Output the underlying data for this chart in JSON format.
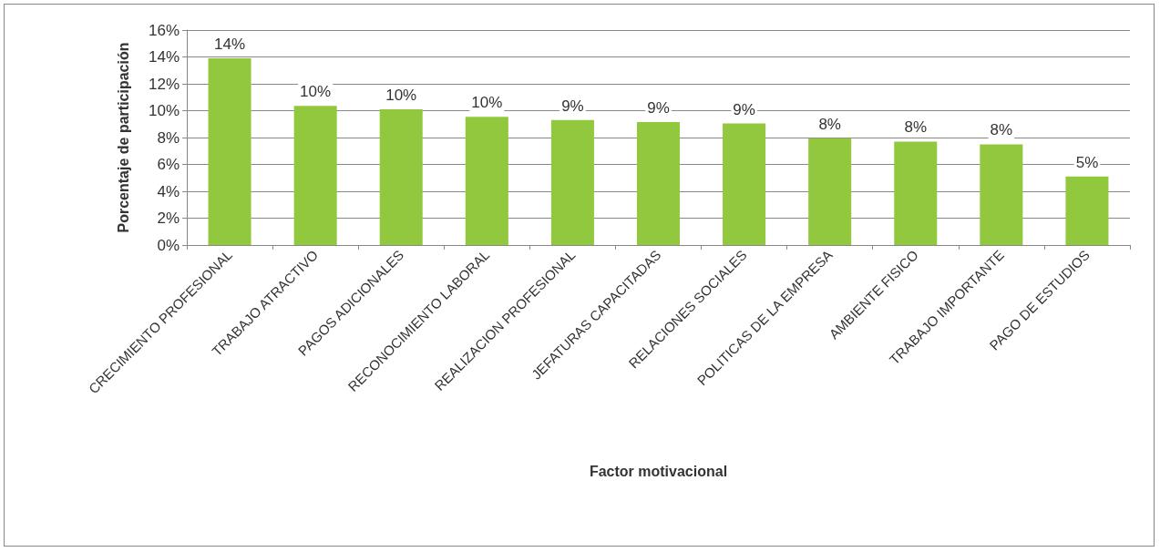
{
  "chart_data": {
    "type": "bar",
    "xlabel": "Factor motivacional",
    "ylabel": "Porcentaje de participación",
    "categories": [
      "CRECIMIENTO PROFESIONAL",
      "TRABAJO ATRACTIVO",
      "PAGOS ADICIONALES",
      "RECONOCIMIENTO LABORAL",
      "REALIZACION PROFESIONAL",
      "JEFATURAS CAPACITADAS",
      "RELACIONES SOCIALES",
      "POLITICAS DE LA EMPRESA",
      "AMBIENTE FISICO",
      "TRABAJO IMPORTANTE",
      "PAGO DE ESTUDIOS"
    ],
    "values": [
      13.9,
      10.35,
      10.1,
      9.55,
      9.3,
      9.15,
      9.05,
      7.95,
      7.7,
      7.5,
      5.1
    ],
    "value_labels": [
      "14%",
      "10%",
      "10%",
      "10%",
      "9%",
      "9%",
      "9%",
      "8%",
      "8%",
      "8%",
      "5%"
    ],
    "color": "#92c83e",
    "ylim": [
      0,
      16
    ],
    "yticks": [
      {
        "value": 0,
        "label": "0%"
      },
      {
        "value": 2,
        "label": "2%"
      },
      {
        "value": 4,
        "label": "4%"
      },
      {
        "value": 6,
        "label": "6%"
      },
      {
        "value": 8,
        "label": "8%"
      },
      {
        "value": 10,
        "label": "10%"
      },
      {
        "value": 12,
        "label": "12%"
      },
      {
        "value": 14,
        "label": "14%"
      },
      {
        "value": 16,
        "label": "16%"
      }
    ],
    "grid": "y"
  }
}
